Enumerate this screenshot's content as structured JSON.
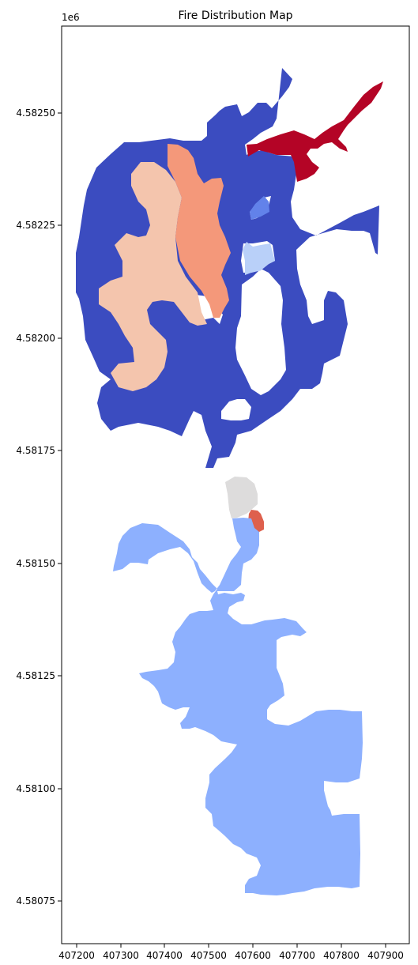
{
  "chart_data": {
    "type": "choropleth",
    "title": "Fire Distribution Map",
    "y_offset_label": "1e6",
    "x_ticks": [
      "407200",
      "407300",
      "407400",
      "407500",
      "407600",
      "407700",
      "407800",
      "407900"
    ],
    "y_ticks": [
      "4.58250",
      "4.58225",
      "4.58200",
      "4.58175",
      "4.58150",
      "4.58125",
      "4.58100",
      "4.58075"
    ],
    "colormap": "coolwarm",
    "regions": [
      {
        "id": "north-dark-blue",
        "color": "#3b4cc0"
      },
      {
        "id": "north-red",
        "color": "#b40426"
      },
      {
        "id": "north-salmon",
        "color": "#f4987a"
      },
      {
        "id": "north-peach",
        "color": "#f4c5ad"
      },
      {
        "id": "north-mid-blue",
        "color": "#6282ea"
      },
      {
        "id": "north-light-blue",
        "color": "#b9d0f9"
      },
      {
        "id": "center-gray",
        "color": "#dddcdc"
      },
      {
        "id": "center-red",
        "color": "#de604d"
      },
      {
        "id": "south-light-blue",
        "color": "#8db0fe"
      }
    ]
  }
}
